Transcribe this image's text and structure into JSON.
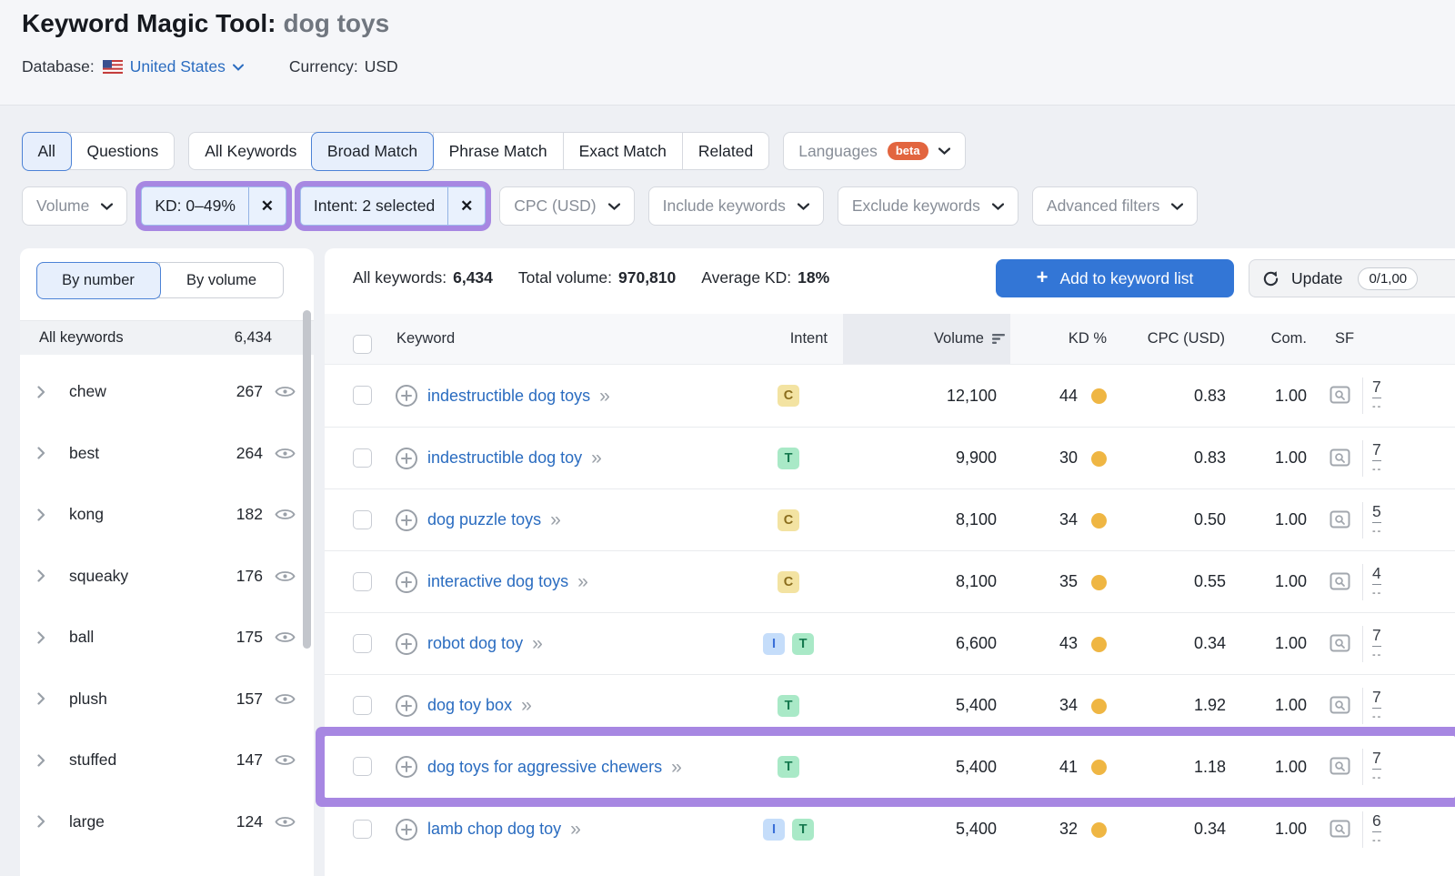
{
  "colors": {
    "accent_blue": "#3376d6",
    "link_blue": "#2a6cc0",
    "annotation_purple": "#a787e2",
    "kd_dot_yellow": "#efb643",
    "beta_badge": "#e2653f",
    "selected_tab_bg": "#e7effc",
    "selected_tab_border": "#4c82d6"
  },
  "intent_colors": {
    "C": {
      "bg": "#f3e3a2",
      "fg": "#8a6d1d"
    },
    "T": {
      "bg": "#a9e9c7",
      "fg": "#15794f"
    },
    "I": {
      "bg": "#c5ddfa",
      "fg": "#3a6fd8"
    }
  },
  "icons": {
    "close": "✕",
    "plus": "+",
    "double_chevron": "»"
  },
  "header": {
    "title": "Keyword Magic Tool:",
    "query": "dog toys",
    "database_label": "Database:",
    "database_value": "United States",
    "currency_label": "Currency:",
    "currency_value": "USD"
  },
  "tabs": {
    "group1": [
      {
        "label": "All",
        "selected": true
      },
      {
        "label": "Questions",
        "selected": false
      }
    ],
    "group2": [
      {
        "label": "All Keywords",
        "selected": false
      },
      {
        "label": "Broad Match",
        "selected": true
      },
      {
        "label": "Phrase Match",
        "selected": false
      },
      {
        "label": "Exact Match",
        "selected": false
      },
      {
        "label": "Related",
        "selected": false
      }
    ],
    "languages": {
      "label": "Languages",
      "badge": "beta"
    }
  },
  "filters": [
    {
      "label": "Volume",
      "type": "dropdown"
    },
    {
      "label": "KD: 0–49%",
      "type": "chip",
      "annotated": true
    },
    {
      "label": "Intent: 2 selected",
      "type": "chip",
      "annotated": true
    },
    {
      "label": "CPC (USD)",
      "type": "dropdown"
    },
    {
      "label": "Include keywords",
      "type": "dropdown"
    },
    {
      "label": "Exclude keywords",
      "type": "dropdown"
    },
    {
      "label": "Advanced filters",
      "type": "dropdown"
    }
  ],
  "sidebar": {
    "toggle": [
      {
        "label": "By number",
        "selected": true
      },
      {
        "label": "By volume",
        "selected": false
      }
    ],
    "all_row": {
      "label": "All keywords",
      "count": "6,434"
    },
    "groups": [
      {
        "label": "chew",
        "count": "267"
      },
      {
        "label": "best",
        "count": "264"
      },
      {
        "label": "kong",
        "count": "182"
      },
      {
        "label": "squeaky",
        "count": "176"
      },
      {
        "label": "ball",
        "count": "175"
      },
      {
        "label": "plush",
        "count": "157"
      },
      {
        "label": "stuffed",
        "count": "147"
      },
      {
        "label": "large",
        "count": "124"
      }
    ]
  },
  "summary": {
    "all_keywords_label": "All keywords:",
    "all_keywords_value": "6,434",
    "total_volume_label": "Total volume:",
    "total_volume_value": "970,810",
    "avg_kd_label": "Average KD:",
    "avg_kd_value": "18%",
    "add_button": "Add to keyword list",
    "update_button": "Update",
    "update_badge": "0/1,00"
  },
  "table": {
    "col_keyword": "Keyword",
    "col_intent": "Intent",
    "col_volume": "Volume",
    "col_kd": "KD %",
    "col_cpc": "CPC (USD)",
    "col_com": "Com.",
    "col_sf": "SF",
    "sf_sub": "--",
    "rows": [
      {
        "keyword": "indestructible dog toys",
        "intents": [
          "C"
        ],
        "volume": "12,100",
        "kd": "44",
        "cpc": "0.83",
        "com": "1.00",
        "sf": "7",
        "highlighted": false
      },
      {
        "keyword": "indestructible dog toy",
        "intents": [
          "T"
        ],
        "volume": "9,900",
        "kd": "30",
        "cpc": "0.83",
        "com": "1.00",
        "sf": "7",
        "highlighted": false
      },
      {
        "keyword": "dog puzzle toys",
        "intents": [
          "C"
        ],
        "volume": "8,100",
        "kd": "34",
        "cpc": "0.50",
        "com": "1.00",
        "sf": "5",
        "highlighted": false
      },
      {
        "keyword": "interactive dog toys",
        "intents": [
          "C"
        ],
        "volume": "8,100",
        "kd": "35",
        "cpc": "0.55",
        "com": "1.00",
        "sf": "4",
        "highlighted": false
      },
      {
        "keyword": "robot dog toy",
        "intents": [
          "I",
          "T"
        ],
        "volume": "6,600",
        "kd": "43",
        "cpc": "0.34",
        "com": "1.00",
        "sf": "7",
        "highlighted": false
      },
      {
        "keyword": "dog toy box",
        "intents": [
          "T"
        ],
        "volume": "5,400",
        "kd": "34",
        "cpc": "1.92",
        "com": "1.00",
        "sf": "7",
        "highlighted": false
      },
      {
        "keyword": "dog toys for aggressive chewers",
        "intents": [
          "T"
        ],
        "volume": "5,400",
        "kd": "41",
        "cpc": "1.18",
        "com": "1.00",
        "sf": "7",
        "highlighted": true
      },
      {
        "keyword": "lamb chop dog toy",
        "intents": [
          "I",
          "T"
        ],
        "volume": "5,400",
        "kd": "32",
        "cpc": "0.34",
        "com": "1.00",
        "sf": "6",
        "highlighted": false
      }
    ]
  }
}
